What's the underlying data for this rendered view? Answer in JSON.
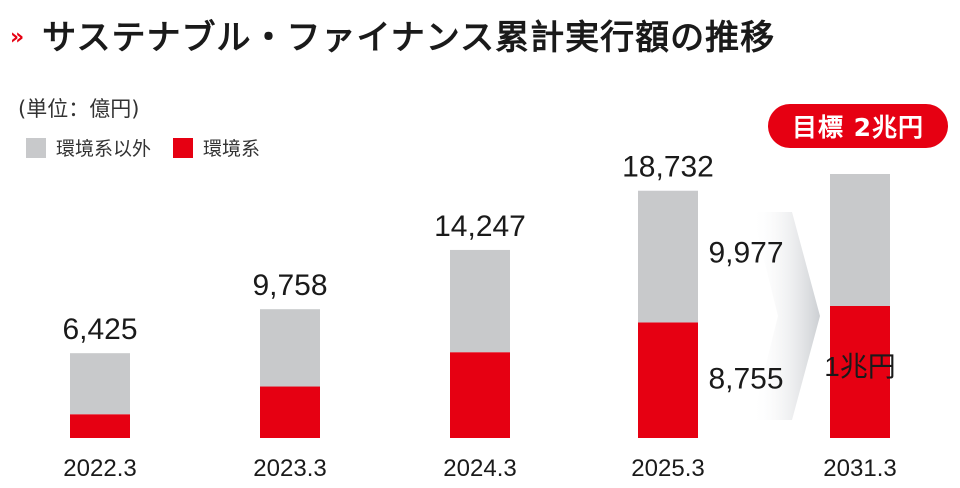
{
  "header": {
    "chevron_glyph": "››",
    "title": "サステナブル・ファイナンス累計実行額の推移"
  },
  "unit_label": "(単位：億円)",
  "legend": {
    "items": [
      {
        "label": "環境系以外",
        "color": "#c8c9cb"
      },
      {
        "label": "環境系",
        "color": "#e60012"
      }
    ]
  },
  "target_badge": "目標 2兆円",
  "chart_data": {
    "type": "bar",
    "stacked": true,
    "categories": [
      "2022.3",
      "2023.3",
      "2024.3",
      "2025.3",
      "2031.3"
    ],
    "series": [
      {
        "name": "環境系",
        "values": [
          1800,
          3900,
          6500,
          8755,
          10000
        ],
        "color": "#e60012"
      },
      {
        "name": "環境系以外",
        "values": [
          4625,
          5858,
          7747,
          9977,
          10000
        ],
        "color": "#c8c9cb"
      }
    ],
    "totals": [
      6425,
      9758,
      14247,
      18732,
      20000
    ],
    "total_labels": [
      "6,425",
      "9,758",
      "14,247",
      "18,732",
      ""
    ],
    "segment_labels": {
      "2025.3": {
        "upper": "9,977",
        "lower": "8,755"
      },
      "2031.3": {
        "lower": "1兆円"
      }
    },
    "target_index": 4,
    "units": "億円"
  }
}
